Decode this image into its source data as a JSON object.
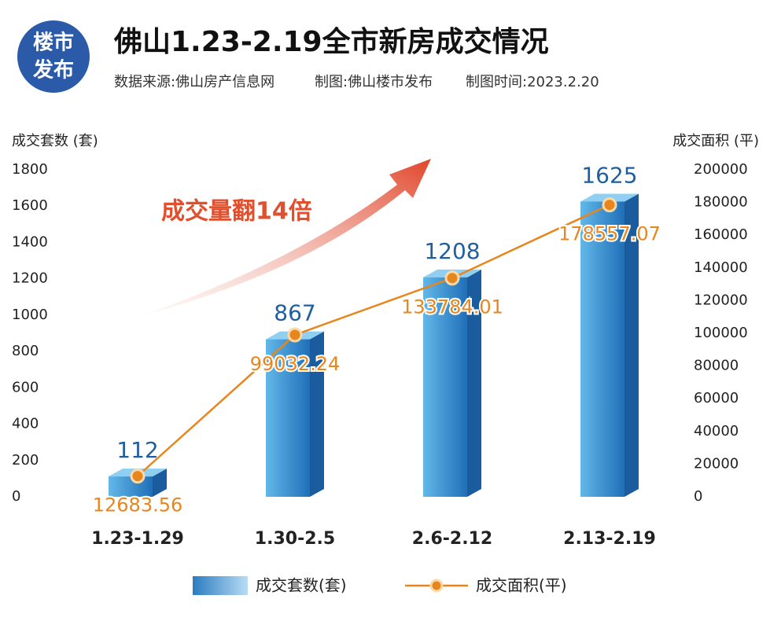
{
  "logo": [
    "楼市",
    "发布"
  ],
  "chart_data": {
    "type": "bar",
    "title": "佛山1.23-2.19全市新房成交情况",
    "subtitle": [
      "数据来源:佛山房产信息网",
      "制图:佛山楼市发布",
      "制图时间:2023.2.20"
    ],
    "annotation": "成交量翻14倍",
    "y_label": "成交套数 (套)",
    "y2_label": "成交面积 (平)",
    "categories": [
      "1.23-1.29",
      "1.30-2.5",
      "2.6-2.12",
      "2.13-2.19"
    ],
    "series": [
      {
        "name": "成交套数(套)",
        "type": "bar",
        "color": "#2a7cc0",
        "values": [
          112,
          867,
          1208,
          1625
        ]
      },
      {
        "name": "成交面积(平)",
        "type": "line",
        "axis": "y2",
        "color": "#e8861e",
        "values": [
          12683.56,
          99032.24,
          133784.01,
          178557.07
        ]
      }
    ],
    "ylim": [
      0,
      1800
    ],
    "yticks": [
      0,
      200,
      400,
      600,
      800,
      1000,
      1200,
      1400,
      1600,
      1800
    ],
    "y2lim": [
      0,
      200000
    ],
    "y2ticks": [
      0,
      20000,
      40000,
      60000,
      80000,
      100000,
      120000,
      140000,
      160000,
      180000,
      200000
    ]
  }
}
